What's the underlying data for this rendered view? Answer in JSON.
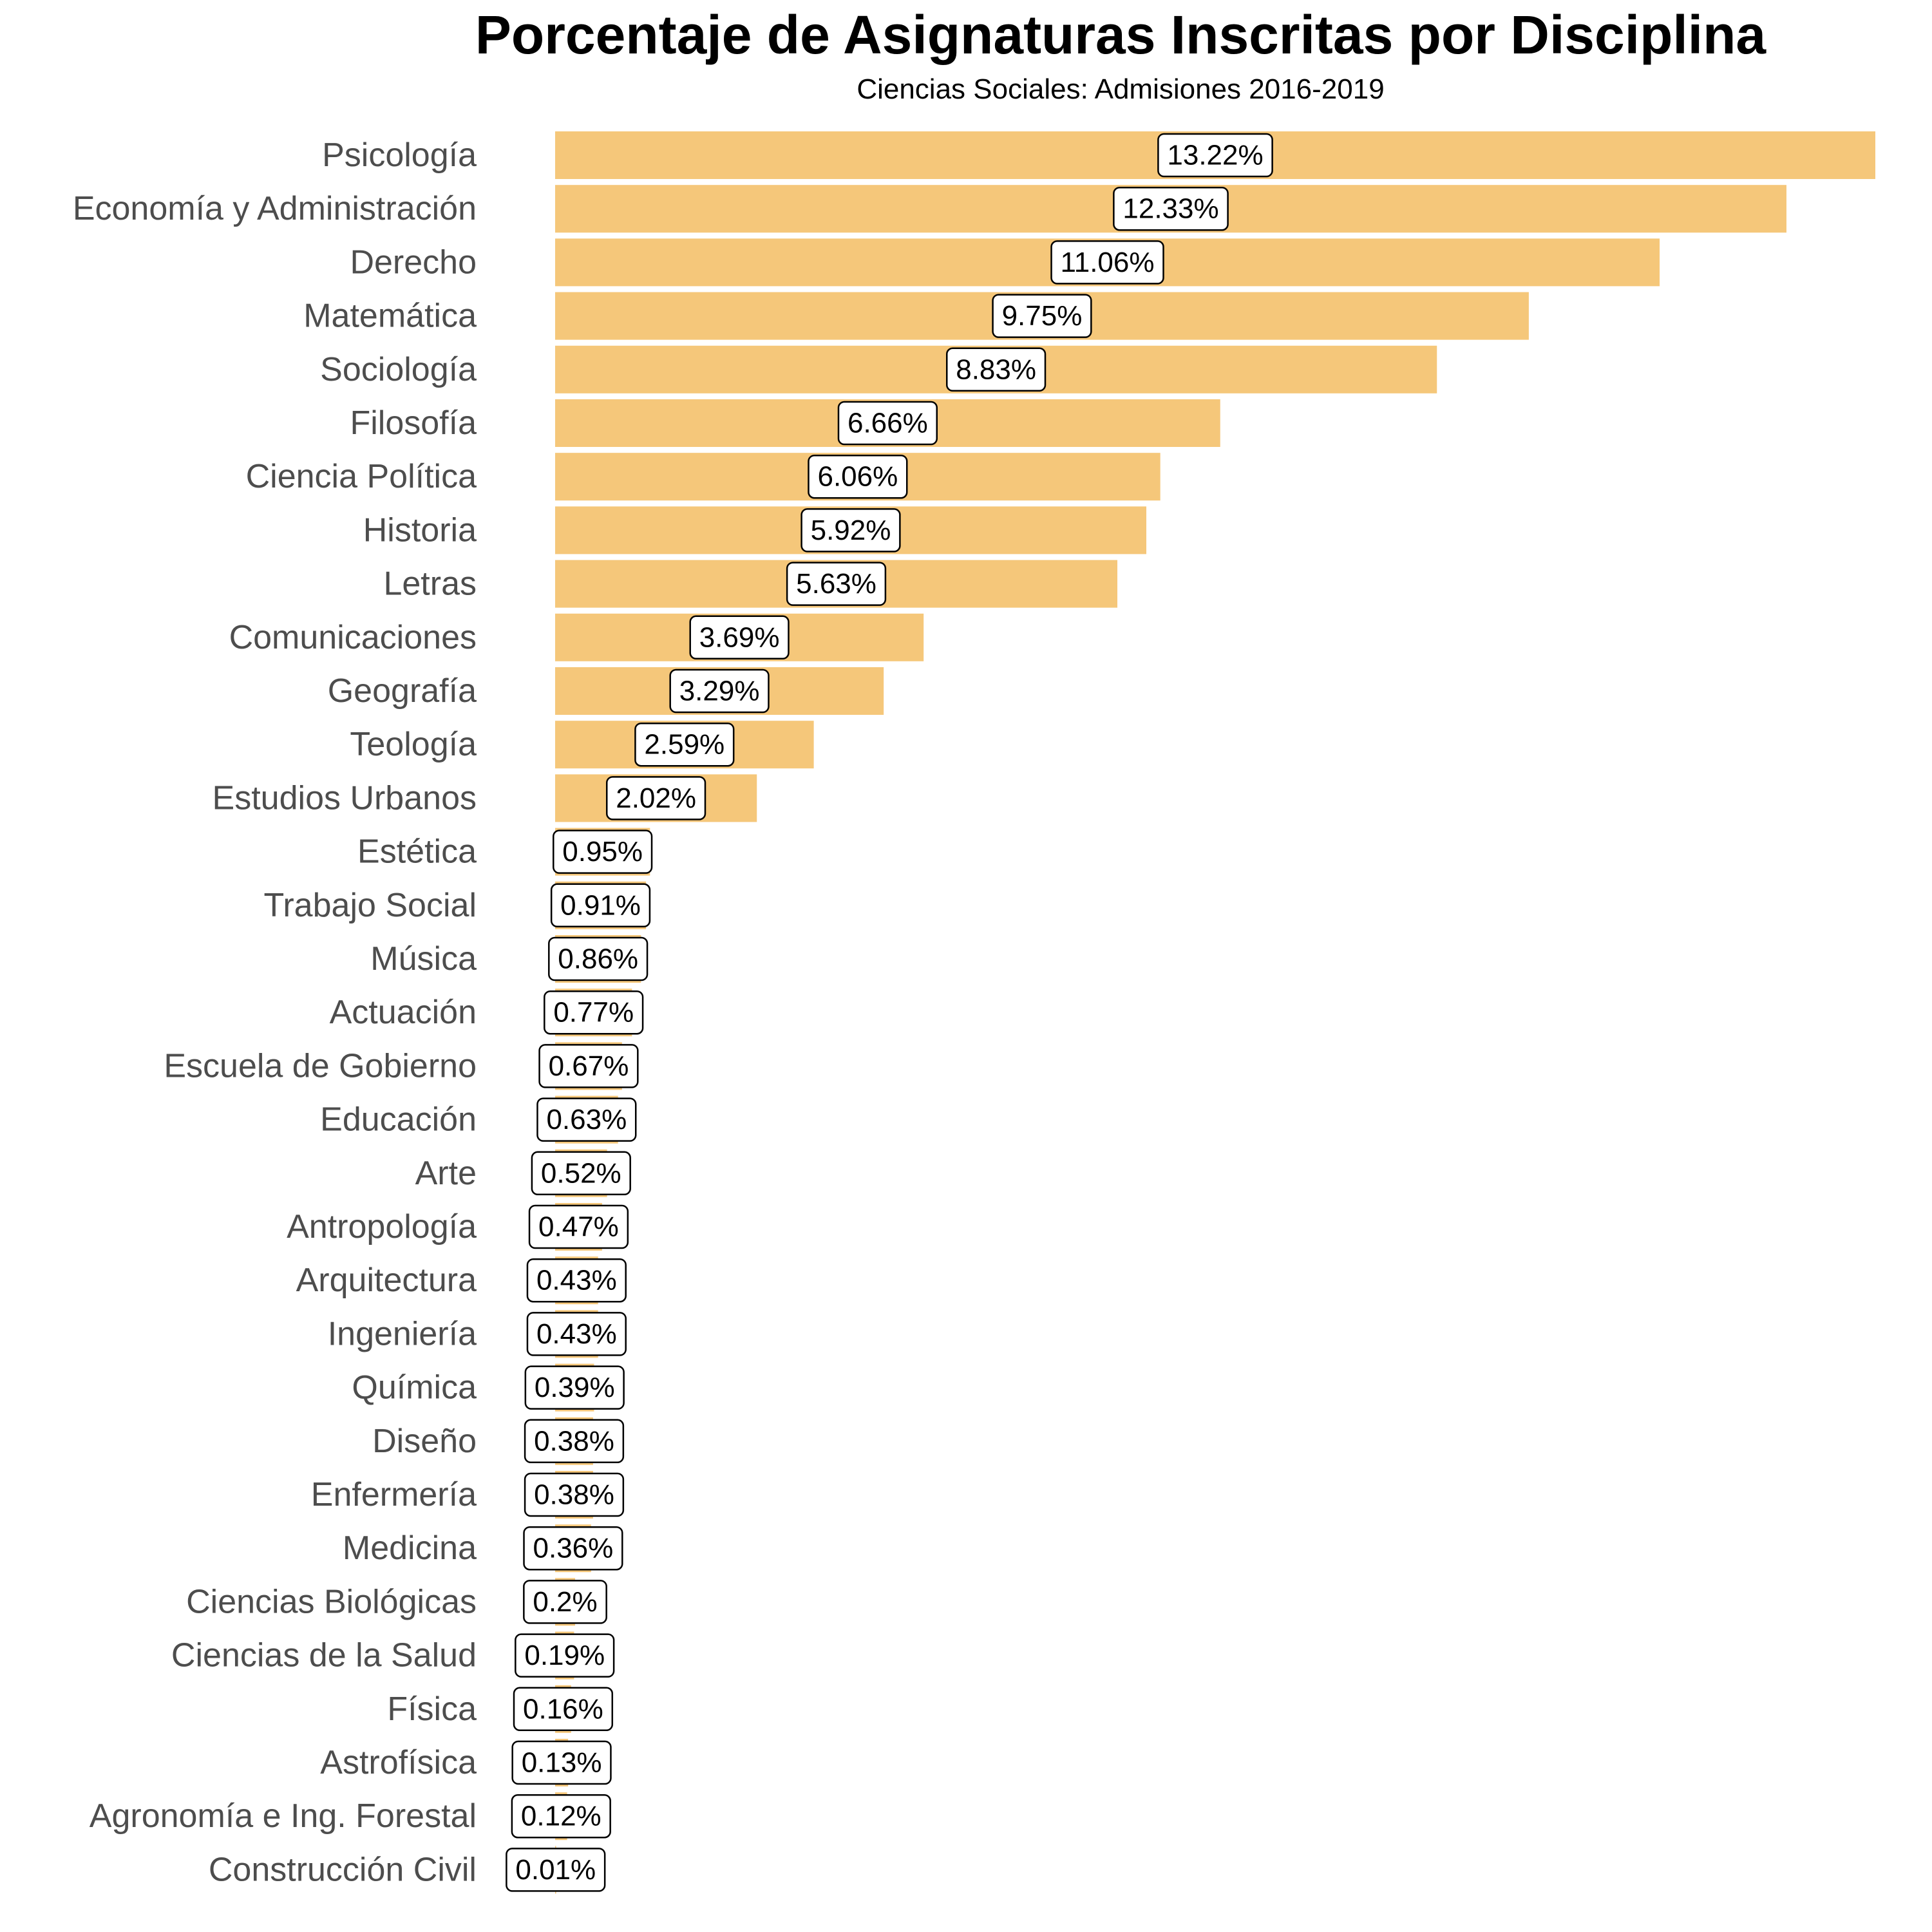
{
  "chart_data": {
    "type": "bar",
    "orientation": "horizontal",
    "title": "Porcentaje de Asignaturas Inscritas por Disciplina",
    "subtitle": "Ciencias Sociales: Admisiones 2016-2019",
    "xlabel": "",
    "ylabel": "",
    "grid": false,
    "bar_color": "#F5C77A",
    "xlim": [
      0,
      13.22
    ],
    "categories": [
      "Psicología",
      "Economía y Administración",
      "Derecho",
      "Matemática",
      "Sociología",
      "Filosofía",
      "Ciencia Política",
      "Historia",
      "Letras",
      "Comunicaciones",
      "Geografía",
      "Teología",
      "Estudios Urbanos",
      "Estética",
      "Trabajo Social",
      "Música",
      "Actuación",
      "Escuela de Gobierno",
      "Educación",
      "Arte",
      "Antropología",
      "Arquitectura",
      "Ingeniería",
      "Química",
      "Diseño",
      "Enfermería",
      "Medicina",
      "Ciencias Biológicas",
      "Ciencias de la Salud",
      "Física",
      "Astrofísica",
      "Agronomía e Ing. Forestal",
      "Construcción Civil"
    ],
    "values": [
      13.22,
      12.33,
      11.06,
      9.75,
      8.83,
      6.66,
      6.06,
      5.92,
      5.63,
      3.69,
      3.29,
      2.59,
      2.02,
      0.95,
      0.91,
      0.86,
      0.77,
      0.67,
      0.63,
      0.52,
      0.47,
      0.43,
      0.43,
      0.39,
      0.38,
      0.38,
      0.36,
      0.2,
      0.19,
      0.16,
      0.13,
      0.12,
      0.01
    ],
    "labels": [
      "13.22%",
      "12.33%",
      "11.06%",
      "9.75%",
      "8.83%",
      "6.66%",
      "6.06%",
      "5.92%",
      "5.63%",
      "3.69%",
      "3.29%",
      "2.59%",
      "2.02%",
      "0.95%",
      "0.91%",
      "0.86%",
      "0.77%",
      "0.67%",
      "0.63%",
      "0.52%",
      "0.47%",
      "0.43%",
      "0.43%",
      "0.39%",
      "0.38%",
      "0.38%",
      "0.36%",
      "0.2%",
      "0.19%",
      "0.16%",
      "0.13%",
      "0.12%",
      "0.01%"
    ]
  }
}
